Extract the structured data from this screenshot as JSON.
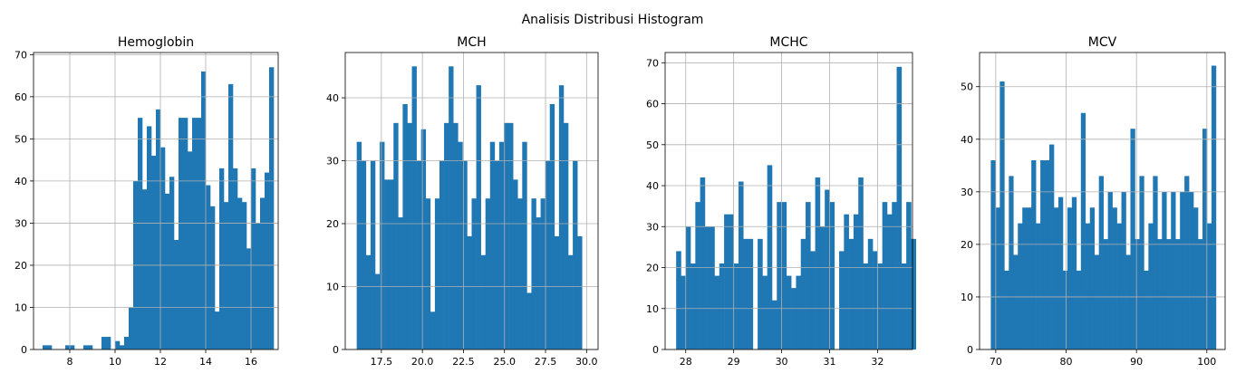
{
  "figure": {
    "suptitle": "Analisis Distribusi Histogram"
  },
  "colors": {
    "bar": "#1f77b4",
    "grid": "#b0b0b0",
    "axis": "#000000"
  },
  "chart_data": [
    {
      "type": "bar",
      "title": "Hemoglobin",
      "xlabel": "",
      "ylabel": "",
      "grid": true,
      "xlim": [
        6.4,
        17.2
      ],
      "ylim": [
        0,
        70.5
      ],
      "xticks": [
        8,
        10,
        12,
        14,
        16
      ],
      "yticks": [
        0,
        10,
        20,
        30,
        40,
        50,
        60,
        70
      ],
      "bin_start": 6.8,
      "bin_width": 0.2,
      "values": [
        1,
        1,
        0,
        0,
        0,
        1,
        1,
        0,
        0,
        1,
        1,
        0,
        0,
        3,
        3,
        0,
        2,
        1,
        3,
        10,
        40,
        55,
        38,
        53,
        46,
        57,
        48,
        37,
        41,
        26,
        55,
        55,
        47,
        55,
        55,
        66,
        39,
        34,
        9,
        43,
        35,
        63,
        43,
        36,
        35,
        24,
        43,
        30,
        36,
        42,
        67
      ]
    },
    {
      "type": "bar",
      "title": "MCH",
      "xlabel": "",
      "ylabel": "",
      "grid": true,
      "xlim": [
        15.3,
        30.7
      ],
      "ylim": [
        0,
        47.2
      ],
      "xticks": [
        17.5,
        20.0,
        22.5,
        25.0,
        27.5,
        30.0
      ],
      "yticks": [
        0,
        10,
        20,
        30,
        40
      ],
      "bin_start": 16.0,
      "bin_width": 0.28,
      "values": [
        33,
        30,
        15,
        30,
        12,
        33,
        27,
        27,
        36,
        21,
        39,
        36,
        45,
        30,
        35,
        24,
        6,
        24,
        30,
        36,
        45,
        36,
        33,
        30,
        18,
        24,
        42,
        15,
        24,
        33,
        30,
        33,
        36,
        36,
        27,
        24,
        33,
        9,
        24,
        21,
        24,
        30,
        39,
        18,
        42,
        36,
        15,
        30,
        18
      ]
    },
    {
      "type": "bar",
      "title": "MCHC",
      "xlabel": "",
      "ylabel": "",
      "grid": true,
      "xlim": [
        27.57,
        32.73
      ],
      "ylim": [
        0,
        72.5
      ],
      "xticks": [
        28,
        29,
        30,
        31,
        32
      ],
      "yticks": [
        0,
        10,
        20,
        30,
        40,
        50,
        60,
        70
      ],
      "bin_start": 27.8,
      "bin_width": 0.1,
      "values": [
        24,
        18,
        30,
        21,
        36,
        42,
        30,
        30,
        18,
        21,
        33,
        33,
        21,
        41,
        27,
        27,
        0,
        27,
        18,
        45,
        12,
        36,
        36,
        18,
        15,
        18,
        27,
        36,
        24,
        42,
        30,
        39,
        36,
        0,
        24,
        33,
        27,
        33,
        42,
        21,
        27,
        24,
        21,
        36,
        33,
        36,
        69,
        21,
        36,
        27
      ]
    },
    {
      "type": "bar",
      "title": "MCV",
      "xlabel": "",
      "ylabel": "",
      "grid": true,
      "xlim": [
        67.7,
        102.6
      ],
      "ylim": [
        0,
        56.5
      ],
      "xticks": [
        70,
        80,
        90,
        100
      ],
      "yticks": [
        0,
        10,
        20,
        30,
        40,
        50
      ],
      "bin_start": 69.3,
      "bin_width": 0.64,
      "values": [
        36,
        27,
        51,
        15,
        33,
        18,
        24,
        27,
        27,
        36,
        24,
        36,
        36,
        39,
        27,
        29,
        15,
        27,
        29,
        15,
        45,
        24,
        27,
        18,
        33,
        21,
        30,
        27,
        24,
        30,
        18,
        42,
        21,
        33,
        15,
        24,
        33,
        21,
        30,
        21,
        30,
        21,
        30,
        33,
        30,
        27,
        21,
        42,
        24,
        54
      ]
    }
  ]
}
